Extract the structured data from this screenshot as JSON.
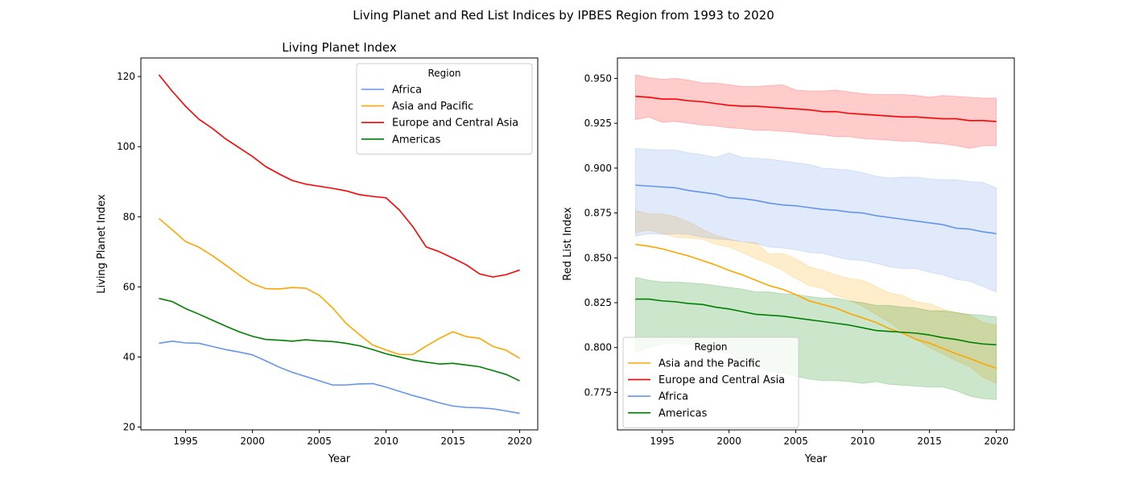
{
  "figure": {
    "suptitle": "Living Planet and Red List Indices by IPBES Region from 1993 to 2020"
  },
  "colors": {
    "africa": "#6495ed",
    "asia": "#ffa500",
    "europe": "#ff0000",
    "americas": "#008000"
  },
  "chart_data": [
    {
      "type": "line",
      "title": "Living Planet Index",
      "xlabel": "Year",
      "ylabel": "Living Planet Index",
      "xlim": [
        1991.65,
        2021.35
      ],
      "ylim": [
        19.2,
        125.3
      ],
      "xticks": [
        1995,
        2000,
        2005,
        2010,
        2015,
        2020
      ],
      "yticks": [
        20,
        40,
        60,
        80,
        100,
        120
      ],
      "legend": {
        "title": "Region",
        "placement": "top-right"
      },
      "x": [
        1993,
        1994,
        1995,
        1996,
        1997,
        1998,
        1999,
        2000,
        2001,
        2002,
        2003,
        2004,
        2005,
        2006,
        2007,
        2008,
        2009,
        2010,
        2011,
        2012,
        2013,
        2014,
        2015,
        2016,
        2017,
        2018,
        2019,
        2020
      ],
      "series": [
        {
          "name": "Africa",
          "color": "#6495ed",
          "values": [
            43.9,
            44.5,
            44.0,
            43.9,
            43.0,
            42.1,
            41.4,
            40.6,
            38.9,
            37.1,
            35.6,
            34.4,
            33.2,
            32.0,
            32.0,
            32.3,
            32.4,
            31.4,
            30.2,
            29.0,
            28.0,
            26.9,
            26.0,
            25.6,
            25.5,
            25.2,
            24.6,
            23.9
          ]
        },
        {
          "name": "Asia and Pacific",
          "color": "#ffa500",
          "values": [
            79.5,
            76.3,
            72.9,
            71.3,
            68.9,
            66.2,
            63.4,
            60.9,
            59.5,
            59.4,
            59.8,
            59.6,
            57.6,
            54.0,
            49.6,
            46.4,
            43.4,
            42.0,
            40.7,
            40.7,
            43.1,
            45.3,
            47.2,
            45.8,
            45.3,
            43.0,
            41.9,
            39.6
          ]
        },
        {
          "name": "Europe and Central Asia",
          "color": "#ff0000",
          "values": [
            120.5,
            115.8,
            111.5,
            107.8,
            105.2,
            102.2,
            99.7,
            97.2,
            94.3,
            92.2,
            90.3,
            89.3,
            88.7,
            88.1,
            87.4,
            86.3,
            85.8,
            85.4,
            81.9,
            77.2,
            71.4,
            70.0,
            68.2,
            66.3,
            63.7,
            62.8,
            63.5,
            64.8
          ]
        },
        {
          "name": "Americas",
          "color": "#008000",
          "values": [
            56.7,
            55.8,
            53.8,
            52.2,
            50.5,
            48.8,
            47.2,
            45.9,
            45.0,
            44.8,
            44.5,
            44.9,
            44.6,
            44.4,
            43.9,
            43.2,
            42.1,
            40.9,
            40.0,
            39.1,
            38.5,
            38.0,
            38.2,
            37.7,
            37.2,
            36.1,
            35.0,
            33.2
          ]
        }
      ]
    },
    {
      "type": "area",
      "title": "",
      "xlabel": "Year",
      "ylabel": "Red List Index",
      "xlim": [
        1991.65,
        2021.35
      ],
      "ylim": [
        0.7541,
        0.9614
      ],
      "xticks": [
        1995,
        2000,
        2005,
        2010,
        2015,
        2020
      ],
      "yticks": [
        0.775,
        0.8,
        0.825,
        0.85,
        0.875,
        0.9,
        0.925,
        0.95
      ],
      "ytick_labels": [
        "0.775",
        "0.800",
        "0.825",
        "0.850",
        "0.875",
        "0.900",
        "0.925",
        "0.950"
      ],
      "legend": {
        "title": "Region",
        "placement": "bottom-left"
      },
      "x": [
        1993,
        1994,
        1995,
        1996,
        1997,
        1998,
        1999,
        2000,
        2001,
        2002,
        2003,
        2004,
        2005,
        2006,
        2007,
        2008,
        2009,
        2010,
        2011,
        2012,
        2013,
        2014,
        2015,
        2016,
        2017,
        2018,
        2019,
        2020
      ],
      "series": [
        {
          "name": "Asia and the Pacific",
          "color": "#ffa500",
          "values": [
            0.8575,
            0.8565,
            0.855,
            0.853,
            0.851,
            0.8485,
            0.846,
            0.843,
            0.8405,
            0.8375,
            0.8345,
            0.8325,
            0.8295,
            0.826,
            0.824,
            0.822,
            0.819,
            0.8165,
            0.814,
            0.8105,
            0.808,
            0.8045,
            0.8025,
            0.7995,
            0.7965,
            0.794,
            0.791,
            0.7885
          ],
          "lower": [
            0.864,
            0.8655,
            0.8635,
            0.8615,
            0.861,
            0.8605,
            0.8575,
            0.856,
            0.853,
            0.8495,
            0.8465,
            0.843,
            0.8385,
            0.8345,
            0.833,
            0.829,
            0.8265,
            0.823,
            0.8185,
            0.814,
            0.809,
            0.8045,
            0.8,
            0.7965,
            0.7925,
            0.7895,
            0.7835,
            0.78
          ],
          "upper": [
            0.8765,
            0.8745,
            0.8745,
            0.873,
            0.87,
            0.866,
            0.8625,
            0.8605,
            0.8585,
            0.8585,
            0.852,
            0.8525,
            0.8495,
            0.845,
            0.843,
            0.8405,
            0.8385,
            0.8375,
            0.834,
            0.8305,
            0.829,
            0.8255,
            0.8245,
            0.8215,
            0.8195,
            0.818,
            0.814,
            0.8125
          ]
        },
        {
          "name": "Europe and Central Asia",
          "color": "#ff0000",
          "values": [
            0.94,
            0.9395,
            0.9385,
            0.9385,
            0.9375,
            0.937,
            0.936,
            0.935,
            0.9345,
            0.9345,
            0.934,
            0.9335,
            0.933,
            0.9325,
            0.9315,
            0.9315,
            0.9305,
            0.93,
            0.9295,
            0.929,
            0.9285,
            0.9285,
            0.928,
            0.9275,
            0.9275,
            0.9265,
            0.9265,
            0.926
          ],
          "lower": [
            0.927,
            0.9285,
            0.9255,
            0.926,
            0.925,
            0.924,
            0.9235,
            0.9225,
            0.922,
            0.921,
            0.921,
            0.9205,
            0.92,
            0.919,
            0.9185,
            0.9175,
            0.9175,
            0.9165,
            0.916,
            0.9155,
            0.915,
            0.915,
            0.914,
            0.9135,
            0.9125,
            0.911,
            0.9125,
            0.9125
          ],
          "upper": [
            0.952,
            0.9505,
            0.9495,
            0.95,
            0.949,
            0.9475,
            0.9475,
            0.9465,
            0.9455,
            0.9455,
            0.946,
            0.9465,
            0.9435,
            0.943,
            0.943,
            0.9435,
            0.9425,
            0.9415,
            0.941,
            0.941,
            0.941,
            0.9405,
            0.9395,
            0.9405,
            0.94,
            0.9395,
            0.939,
            0.939
          ]
        },
        {
          "name": "Africa",
          "color": "#6495ed",
          "values": [
            0.8905,
            0.89,
            0.8895,
            0.889,
            0.8875,
            0.8865,
            0.8855,
            0.8835,
            0.883,
            0.882,
            0.8805,
            0.8795,
            0.879,
            0.878,
            0.877,
            0.8765,
            0.8755,
            0.875,
            0.8735,
            0.8725,
            0.8715,
            0.8705,
            0.8695,
            0.8685,
            0.8665,
            0.866,
            0.8645,
            0.8635
          ],
          "lower": [
            0.862,
            0.8635,
            0.863,
            0.8635,
            0.863,
            0.8615,
            0.8605,
            0.86,
            0.859,
            0.858,
            0.856,
            0.8555,
            0.8545,
            0.853,
            0.8525,
            0.8505,
            0.849,
            0.8485,
            0.847,
            0.845,
            0.844,
            0.844,
            0.842,
            0.8405,
            0.838,
            0.837,
            0.834,
            0.831
          ],
          "upper": [
            0.911,
            0.9105,
            0.91,
            0.91,
            0.9085,
            0.9075,
            0.906,
            0.9085,
            0.906,
            0.9055,
            0.905,
            0.904,
            0.903,
            0.902,
            0.9,
            0.8995,
            0.899,
            0.8975,
            0.8955,
            0.8945,
            0.895,
            0.895,
            0.894,
            0.8935,
            0.8935,
            0.8925,
            0.892,
            0.889
          ]
        },
        {
          "name": "Americas",
          "color": "#008000",
          "values": [
            0.827,
            0.827,
            0.826,
            0.8255,
            0.8245,
            0.824,
            0.8225,
            0.8215,
            0.82,
            0.8185,
            0.818,
            0.8175,
            0.8165,
            0.8155,
            0.8145,
            0.8135,
            0.8125,
            0.811,
            0.8095,
            0.809,
            0.8085,
            0.808,
            0.807,
            0.8055,
            0.8045,
            0.803,
            0.802,
            0.8015
          ],
          "lower": [
            0.7975,
            0.8,
            0.802,
            0.8025,
            0.8015,
            0.801,
            0.7985,
            0.797,
            0.7925,
            0.789,
            0.787,
            0.786,
            0.784,
            0.7825,
            0.7815,
            0.7815,
            0.781,
            0.78,
            0.781,
            0.7795,
            0.779,
            0.7785,
            0.778,
            0.778,
            0.776,
            0.773,
            0.7715,
            0.771
          ],
          "upper": [
            0.839,
            0.8375,
            0.8365,
            0.8365,
            0.836,
            0.8355,
            0.8345,
            0.8335,
            0.8325,
            0.831,
            0.831,
            0.83,
            0.8295,
            0.8285,
            0.8275,
            0.8275,
            0.826,
            0.825,
            0.8235,
            0.8235,
            0.8225,
            0.822,
            0.8205,
            0.8205,
            0.8195,
            0.8185,
            0.818,
            0.817
          ]
        }
      ]
    }
  ]
}
